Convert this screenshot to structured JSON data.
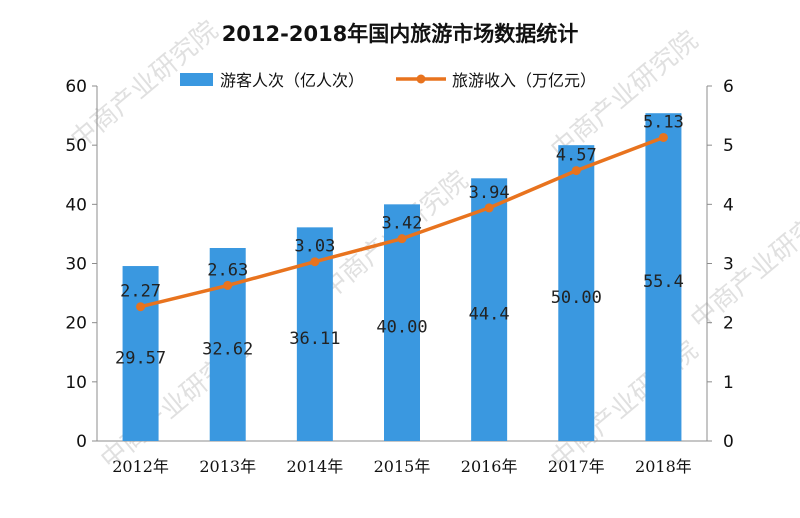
{
  "chart_data": {
    "type": "bar+line",
    "title": "2012-2018年国内旅游市场数据统计",
    "categories": [
      "2012年",
      "2013年",
      "2014年",
      "2015年",
      "2016年",
      "2017年",
      "2018年"
    ],
    "series": [
      {
        "name": "游客人次（亿人次）",
        "type": "bar",
        "axis": "left",
        "color": "#3a98e0",
        "values": [
          29.57,
          32.62,
          36.11,
          40.0,
          44.4,
          50.0,
          55.4
        ],
        "labels": [
          "29.57",
          "32.62",
          "36.11",
          "40.00",
          "44.4",
          "50.00",
          "55.4"
        ]
      },
      {
        "name": "旅游收入（万亿元）",
        "type": "line",
        "axis": "right",
        "color": "#e8731e",
        "values": [
          2.27,
          2.63,
          3.03,
          3.42,
          3.94,
          4.57,
          5.13
        ],
        "labels": [
          "2.27",
          "2.63",
          "3.03",
          "3.42",
          "3.94",
          "4.57",
          "5.13"
        ]
      }
    ],
    "y_left": {
      "ylim": [
        0,
        60
      ],
      "ticks": [
        "0",
        "10",
        "20",
        "30",
        "40",
        "50",
        "60"
      ]
    },
    "y_right": {
      "ylim": [
        0,
        6
      ],
      "ticks": [
        "0",
        "1",
        "2",
        "3",
        "4",
        "5",
        "6"
      ]
    },
    "grid": false,
    "legend": "top",
    "watermark": "中商产业研究院"
  }
}
